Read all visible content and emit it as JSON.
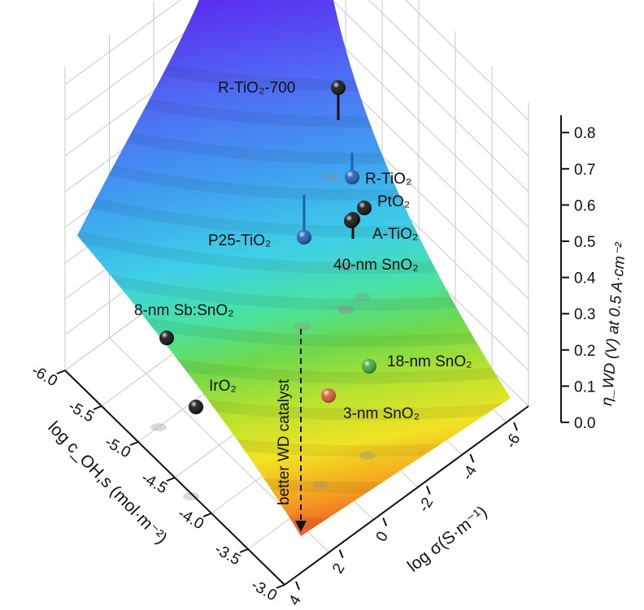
{
  "chart_data": {
    "type": "surface3d",
    "title": "",
    "xlabel": "log σ(S·m⁻¹)",
    "ylabel": "log c_OH,s (mol·m⁻²)",
    "zlabel": "η_WD (V) at 0.5 A·cm⁻²",
    "x_ticks": [
      "-6",
      "-4",
      "-2",
      "0",
      "2",
      "4"
    ],
    "y_ticks": [
      "-6.0",
      "-5.5",
      "-5.0",
      "-4.5",
      "-4.0",
      "-3.5",
      "-3.0"
    ],
    "z_ticks": [
      "0.0",
      "0.1",
      "0.2",
      "0.3",
      "0.4",
      "0.5",
      "0.6",
      "0.7",
      "0.8"
    ],
    "xlim": [
      -7,
      4
    ],
    "ylim": [
      -6,
      -3
    ],
    "zlim": [
      0,
      0.85
    ],
    "grid": true,
    "colormap": [
      "#5b2df0",
      "#4f6cf5",
      "#3fa0f0",
      "#3ed0e6",
      "#47e2a4",
      "#6fd94a",
      "#b8e22f",
      "#f2e222",
      "#f5a51f",
      "#ef5a2a"
    ],
    "annotation": "better WD catalyst",
    "points": [
      {
        "label": "R-TiO₂-700",
        "x": -5.5,
        "y": -5.95,
        "z": 0.7,
        "color": "#101010"
      },
      {
        "label": "R-TiO₂",
        "x": -2.4,
        "y": -5.15,
        "z": 0.6,
        "color": "#1f5fae"
      },
      {
        "label": "PtO₂",
        "x": -2.0,
        "y": -5.0,
        "z": 0.56,
        "color": "#101010"
      },
      {
        "label": "A-TiO₂",
        "x": -2.3,
        "y": -4.95,
        "z": 0.55,
        "color": "#101010"
      },
      {
        "label": "40-nm SnO₂",
        "x": -2.6,
        "y": -4.9,
        "z": 0.52,
        "color": "#101010"
      },
      {
        "label": "P25-TiO₂",
        "x": -4.5,
        "y": -5.6,
        "z": 0.51,
        "color": "#1f5fae"
      },
      {
        "label": "8-nm Sb:SnO₂",
        "x": -4.3,
        "y": -5.65,
        "z": 0.3,
        "color": "#101010"
      },
      {
        "label": "IrO₂",
        "x": -1.0,
        "y": -5.9,
        "z": 0.07,
        "color": "#101010"
      },
      {
        "label": "18-nm SnO₂",
        "x": 0.8,
        "y": -3.35,
        "z": 0.02,
        "color": "#3ea83a"
      },
      {
        "label": "3-nm SnO₂",
        "x": 1.2,
        "y": -4.45,
        "z": 0.03,
        "color": "#d06030"
      }
    ]
  }
}
